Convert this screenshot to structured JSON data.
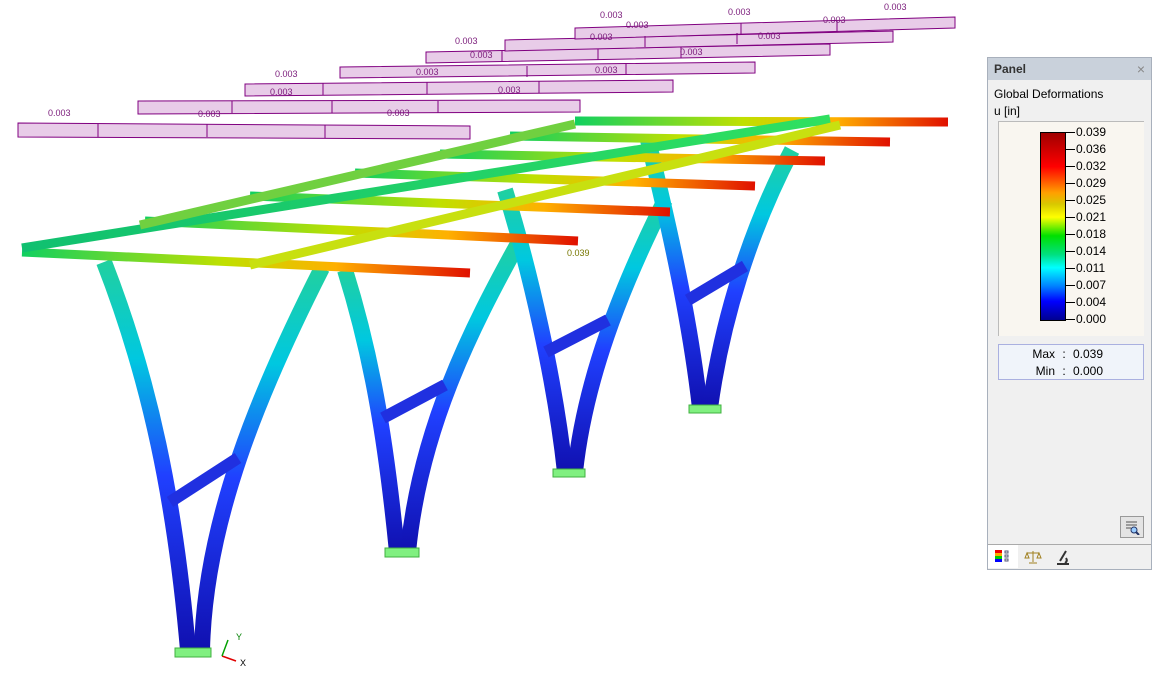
{
  "viewport": {
    "load_labels": [
      "0.003",
      "0.003",
      "0.003",
      "0.003",
      "0.003",
      "0.003",
      "0.003",
      "0.003",
      "0.003",
      "0.003",
      "0.003",
      "0.003",
      "0.003",
      "0.003",
      "0.003",
      "0.003",
      "0.003",
      "0.003"
    ],
    "max_label": "0.039",
    "axes": {
      "x": "X",
      "y": "Y"
    }
  },
  "panel": {
    "title": "Panel",
    "close_icon": "close-icon",
    "result_title": "Global Deformations",
    "unit": "u [in]",
    "legend_values": [
      "0.039",
      "0.036",
      "0.032",
      "0.029",
      "0.025",
      "0.021",
      "0.018",
      "0.014",
      "0.011",
      "0.007",
      "0.004",
      "0.000"
    ],
    "max_label": "Max",
    "max_value": "0.039",
    "min_label": "Min",
    "min_value": "0.000",
    "separator": ":",
    "tabs": [
      "color-scale-icon",
      "balance-icon",
      "microscope-icon"
    ],
    "colors": {
      "max": "#a00000",
      "mid": "#ffff00",
      "min": "#000090",
      "load": "#e8c8e8"
    }
  }
}
